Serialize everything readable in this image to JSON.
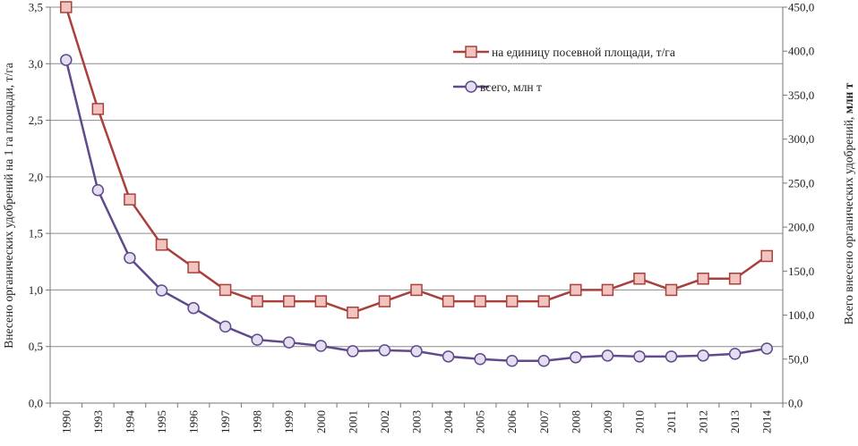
{
  "chart_data": {
    "type": "line",
    "categories": [
      "1990",
      "1993",
      "1994",
      "1995",
      "1996",
      "1997",
      "1998",
      "1999",
      "2000",
      "2001",
      "2002",
      "2003",
      "2004",
      "2005",
      "2006",
      "2007",
      "2008",
      "2009",
      "2010",
      "2011",
      "2012",
      "2013",
      "2014"
    ],
    "series": [
      {
        "name": "на единицу посевной площади, т/га",
        "axis": "left",
        "color": "#a9403c",
        "marker": "square",
        "marker_fill": "#f2c4c0",
        "values": [
          3.5,
          2.6,
          1.8,
          1.4,
          1.2,
          1.0,
          0.9,
          0.9,
          0.9,
          0.8,
          0.9,
          1.0,
          0.9,
          0.9,
          0.9,
          0.9,
          1.0,
          1.0,
          1.1,
          1.0,
          1.1,
          1.1,
          1.3
        ]
      },
      {
        "name": "всего, млн  т",
        "axis": "right",
        "color": "#5f4a8b",
        "marker": "circle",
        "marker_fill": "#e4def0",
        "values": [
          390,
          242,
          165,
          128,
          108,
          87,
          72,
          69,
          65,
          59,
          60,
          59,
          53,
          50,
          48,
          48,
          52,
          54,
          53,
          53,
          54,
          56,
          62
        ]
      }
    ],
    "left_axis": {
      "label": "Внесено органических удобрений на 1 га площади, т/га",
      "ylim": [
        0,
        3.5
      ],
      "ticks": [
        "0,0",
        "0,5",
        "1,0",
        "1,5",
        "2,0",
        "2,5",
        "3,0",
        "3,5"
      ]
    },
    "right_axis": {
      "label_prefix": "Всего внесено органических удобрений, ",
      "label_bold": "млн  т",
      "ylim": [
        0,
        450
      ],
      "ticks": [
        "0,0",
        "50,0",
        "100,0",
        "150,0",
        "200,0",
        "250,0",
        "300,0",
        "350,0",
        "400,0",
        "450,0"
      ]
    },
    "grid": true,
    "legend_position": "top-right"
  }
}
